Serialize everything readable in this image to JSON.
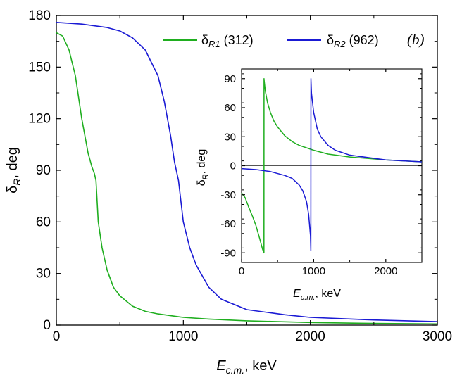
{
  "chart_data": [
    {
      "type": "line",
      "panel_label": "(b)",
      "xlabel": {
        "main": "E",
        "sub": "c.m.",
        "rest": ", keV"
      },
      "ylabel": {
        "main": "δ",
        "sub": "R",
        "rest": ", deg"
      },
      "xlim": [
        0,
        3000
      ],
      "ylim": [
        0,
        180
      ],
      "xticks": [
        0,
        1000,
        2000,
        3000
      ],
      "yticks": [
        0,
        30,
        60,
        90,
        120,
        150,
        180
      ],
      "legend_position": "top-right",
      "series": [
        {
          "legend_main": "δ",
          "legend_sub": "R1",
          "legend_rest": " (312)",
          "color": "#1fae1f",
          "x": [
            0,
            50,
            100,
            150,
            200,
            250,
            280,
            300,
            312,
            330,
            360,
            400,
            450,
            500,
            600,
            700,
            800,
            1000,
            1200,
            1500,
            2000,
            2500,
            3000
          ],
          "y": [
            170,
            168,
            160,
            145,
            120,
            100,
            92,
            88,
            84,
            60,
            45,
            32,
            22,
            17,
            11,
            8,
            6.5,
            4.5,
            3.5,
            2.5,
            1.5,
            1,
            0.7
          ]
        },
        {
          "legend_main": "δ",
          "legend_sub": "R2",
          "legend_rest": " (962)",
          "color": "#1a1ad4",
          "x": [
            0,
            200,
            400,
            500,
            600,
            700,
            800,
            850,
            900,
            930,
            962,
            1000,
            1050,
            1100,
            1200,
            1300,
            1500,
            1800,
            2000,
            2500,
            3000
          ],
          "y": [
            176,
            175,
            173,
            171,
            167,
            160,
            145,
            130,
            110,
            95,
            84,
            60,
            45,
            35,
            22,
            15,
            9,
            6,
            4.5,
            3,
            2
          ]
        }
      ]
    },
    {
      "type": "line",
      "xlabel": {
        "main": "E",
        "sub": "c.m.",
        "rest": ", keV"
      },
      "ylabel": {
        "main": "δ",
        "sub": "R",
        "rest": ", deg"
      },
      "xlim": [
        0,
        2500
      ],
      "ylim": [
        -100,
        100
      ],
      "xticks": [
        0,
        1000,
        2000
      ],
      "yticks": [
        -90,
        -60,
        -30,
        0,
        30,
        60,
        90
      ],
      "series": [
        {
          "color": "#1fae1f",
          "x": [
            0,
            50,
            100,
            150,
            200,
            250,
            290,
            311,
            312,
            313,
            330,
            360,
            400,
            450,
            500,
            600,
            700,
            800,
            1000,
            1200,
            1500,
            2000,
            2500
          ],
          "y": [
            -28,
            -33,
            -43,
            -52,
            -62,
            -75,
            -86,
            -90,
            90,
            88,
            77,
            65,
            55,
            46,
            40,
            31,
            25,
            21,
            16,
            12,
            9,
            6,
            4
          ]
        },
        {
          "color": "#1a1ad4",
          "x": [
            0,
            200,
            400,
            600,
            700,
            800,
            850,
            900,
            930,
            955,
            961,
            962,
            963,
            970,
            1000,
            1050,
            1100,
            1200,
            1300,
            1500,
            2000,
            2500
          ],
          "y": [
            -3,
            -4,
            -6,
            -10,
            -13,
            -20,
            -26,
            -37,
            -50,
            -72,
            -88,
            90,
            88,
            75,
            55,
            38,
            30,
            21,
            16,
            11,
            6,
            4
          ]
        }
      ]
    }
  ]
}
